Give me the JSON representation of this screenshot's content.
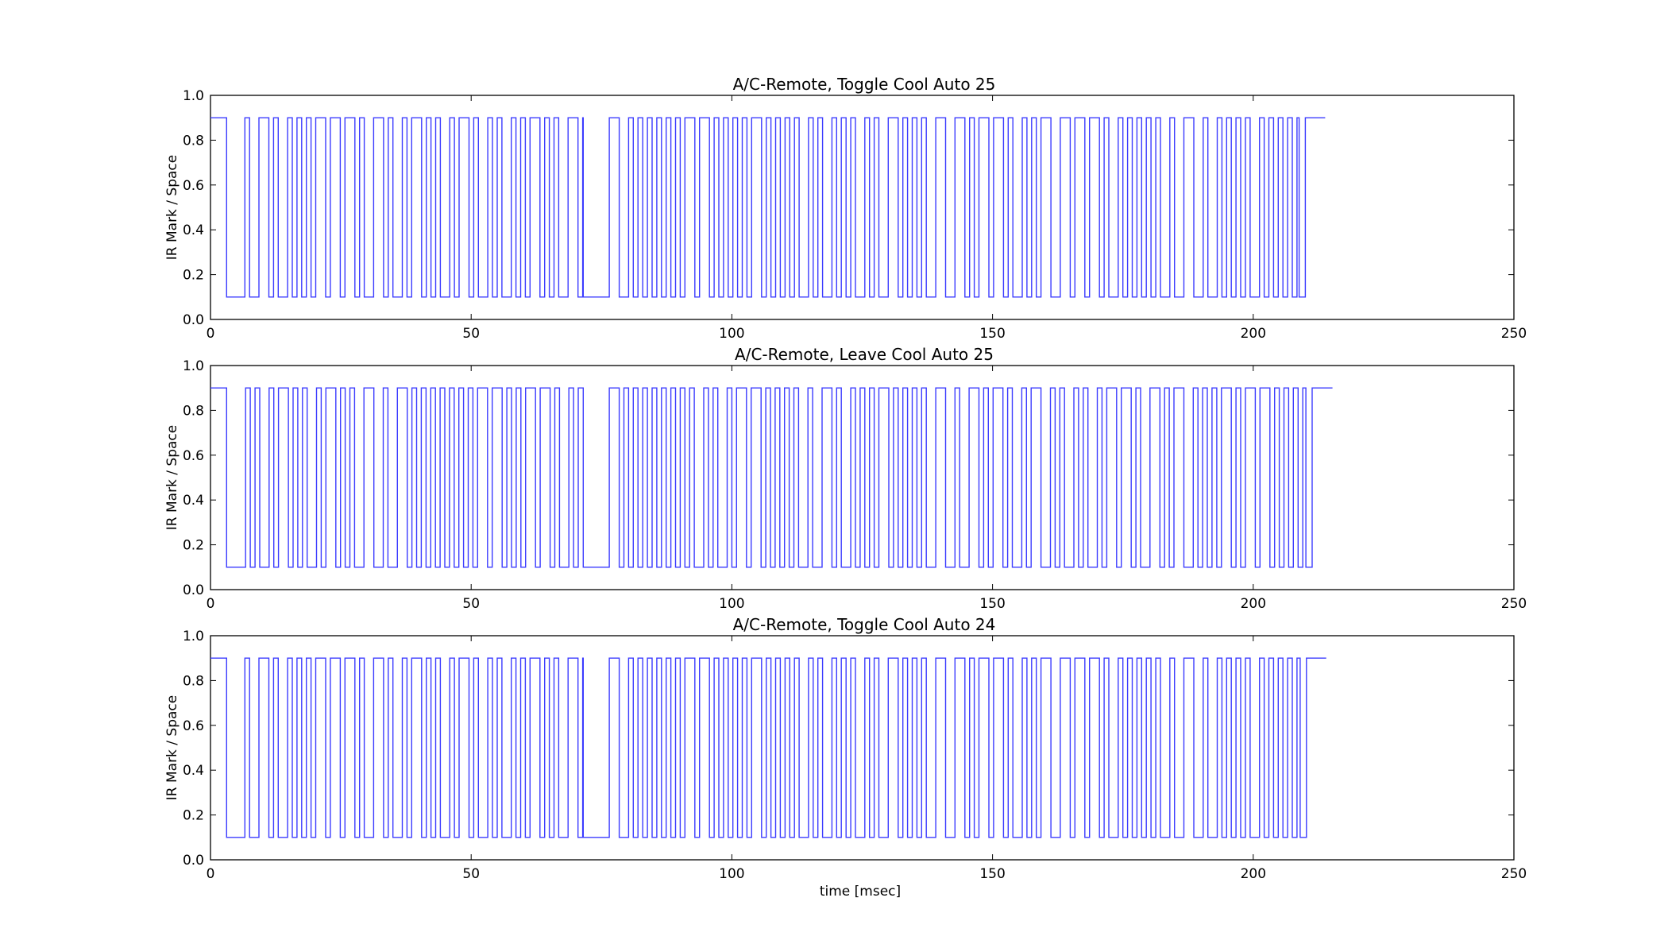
{
  "figure": {
    "shared_xlabel": "time [msec]"
  },
  "colors": {
    "line": "#3b3bff",
    "axes": "#000000",
    "background": "#ffffff"
  },
  "chart_data": [
    {
      "type": "line",
      "title": "A/C-Remote, Toggle Cool Auto 25",
      "xlabel": "",
      "ylabel": "IR Mark / Space",
      "xlim": [
        0,
        250
      ],
      "ylim": [
        0.0,
        1.0
      ],
      "x_ticks": [
        0,
        50,
        100,
        150,
        200,
        250
      ],
      "y_ticks": [
        0.0,
        0.2,
        0.4,
        0.6,
        0.8,
        1.0
      ],
      "x_tick_labels": [
        "0",
        "50",
        "100",
        "150",
        "200",
        "250"
      ],
      "y_tick_labels": [
        "0.0",
        "0.2",
        "0.4",
        "0.6",
        "0.8",
        "1.0"
      ],
      "grid": false,
      "levels": {
        "mark": 0.9,
        "space": 0.1
      },
      "series": [
        {
          "steps": [
            [
              0,
              0.9
            ],
            [
              3.1,
              0.1
            ],
            [
              6.9,
              0.9
            ],
            [
              8.9,
              0.1
            ],
            [
              9.5,
              0.9
            ],
            [
              10.6,
              0.1
            ],
            [
              11.6,
              0.9
            ],
            [
              12.3,
              0.1
            ],
            [
              13.5,
              0.9
            ],
            [
              14.3,
              0.1
            ],
            [
              15.4,
              0.9
            ],
            [
              16.4,
              0.1
            ],
            [
              17.3,
              0.9
            ],
            [
              18.2,
              0.1
            ],
            [
              19.1,
              0.9
            ],
            [
              20.3,
              0.1
            ],
            [
              21.0,
              0.9
            ],
            [
              22.0,
              0.1
            ],
            [
              22.8,
              0.9
            ],
            [
              23.7,
              0.1
            ],
            [
              24.5,
              0.9
            ],
            [
              25.4,
              0.1
            ],
            [
              26.3,
              0.9
            ],
            [
              27.2,
              0.1
            ],
            [
              28.6,
              0.9
            ],
            [
              29.8,
              0.1
            ],
            [
              31.9,
              0.9
            ],
            [
              32.9,
              0.1
            ],
            [
              33.8,
              0.9
            ],
            [
              34.7,
              0.1
            ],
            [
              35.6,
              0.9
            ],
            [
              36.5,
              0.1
            ],
            [
              37.4,
              0.9
            ],
            [
              38.3,
              0.1
            ],
            [
              39.2,
              0.9
            ],
            [
              40.2,
              0.1
            ],
            [
              41.0,
              0.9
            ],
            [
              41.9,
              0.1
            ],
            [
              42.8,
              0.9
            ],
            [
              43.7,
              0.1
            ],
            [
              44.6,
              0.9
            ],
            [
              45.5,
              0.1
            ],
            [
              46.4,
              0.9
            ],
            [
              47.3,
              0.1
            ],
            [
              48.1,
              0.9
            ],
            [
              49.0,
              0.1
            ],
            [
              49.9,
              0.9
            ],
            [
              50.8,
              0.1
            ],
            [
              51.7,
              0.9
            ],
            [
              52.6,
              0.1
            ],
            [
              53.5,
              0.9
            ],
            [
              54.4,
              0.1
            ],
            [
              55.3,
              0.9
            ],
            [
              56.2,
              0.1
            ],
            [
              57.1,
              0.9
            ],
            [
              58.0,
              0.1
            ],
            [
              58.8,
              0.9
            ],
            [
              59.7,
              0.1
            ],
            [
              60.6,
              0.9
            ],
            [
              61.5,
              0.1
            ],
            [
              62.4,
              0.9
            ],
            [
              63.3,
              0.1
            ],
            [
              64.1,
              0.9
            ],
            [
              65.9,
              0.1
            ],
            [
              66.8,
              0.9
            ],
            [
              67.7,
              0.1
            ],
            [
              68.5,
              0.9
            ],
            [
              69.5,
              0.1
            ],
            [
              70.2,
              0.9
            ],
            [
              73.0,
              0.1
            ],
            [
              76.8,
              0.9
            ],
            [
              78.8,
              0.1
            ],
            [
              79.4,
              0.9
            ],
            [
              80.2,
              0.1
            ],
            [
              81.3,
              0.9
            ],
            [
              82.1,
              0.1
            ],
            [
              83.3,
              0.9
            ],
            [
              84.0,
              0.1
            ],
            [
              85.1,
              0.9
            ],
            [
              86.0,
              0.1
            ],
            [
              86.8,
              0.9
            ],
            [
              88.9,
              0.1
            ],
            [
              89.7,
              0.9
            ],
            [
              90.5,
              0.1
            ],
            [
              91.3,
              0.9
            ],
            [
              92.3,
              0.1
            ],
            [
              93.1,
              0.9
            ],
            [
              94.0,
              0.1
            ],
            [
              94.9,
              0.9
            ],
            [
              95.9,
              0.1
            ],
            [
              97.8,
              0.9
            ],
            [
              99.4,
              0.1
            ],
            [
              101.3,
              0.9
            ],
            [
              102.2,
              0.1
            ],
            [
              103.1,
              0.9
            ],
            [
              104.0,
              0.1
            ],
            [
              104.9,
              0.9
            ],
            [
              105.8,
              0.1
            ],
            [
              106.6,
              0.9
            ],
            [
              107.5,
              0.1
            ],
            [
              108.4,
              0.9
            ],
            [
              109.3,
              0.1
            ],
            [
              110.2,
              0.9
            ],
            [
              111.1,
              0.1
            ],
            [
              111.9,
              0.9
            ],
            [
              112.8,
              0.1
            ],
            [
              113.7,
              0.9
            ],
            [
              114.6,
              0.1
            ],
            [
              115.5,
              0.9
            ],
            [
              116.4,
              0.1
            ],
            [
              117.2,
              0.9
            ],
            [
              118.1,
              0.1
            ],
            [
              119.0,
              0.9
            ],
            [
              119.9,
              0.1
            ],
            [
              120.8,
              0.9
            ],
            [
              121.7,
              0.1
            ],
            [
              122.5,
              0.9
            ],
            [
              123.4,
              0.1
            ],
            [
              124.3,
              0.9
            ],
            [
              125.2,
              0.1
            ],
            [
              126.1,
              0.9
            ],
            [
              127.0,
              0.1
            ],
            [
              127.8,
              0.9
            ],
            [
              128.7,
              0.1
            ],
            [
              129.6,
              0.9
            ],
            [
              130.5,
              0.1
            ],
            [
              131.4,
              0.9
            ],
            [
              132.3,
              0.1
            ],
            [
              133.1,
              0.9
            ],
            [
              134.0,
              0.1
            ],
            [
              134.9,
              0.9
            ],
            [
              135.8,
              0.1
            ],
            [
              136.8,
              0.9
            ],
            [
              137.6,
              0.1
            ],
            [
              138.6,
              0.9
            ],
            [
              140.5,
              0.1
            ],
            [
              141.4,
              0.9
            ],
            [
              142.0,
              0.1
            ],
            [
              142.2,
              0.9
            ],
            [
              142.0,
              0.9
            ],
            [
              144.0,
              0.1
            ]
          ]
        }
      ]
    },
    {
      "type": "line",
      "title": "A/C-Remote, Leave Cool Auto 25",
      "xlabel": "",
      "ylabel": "IR Mark / Space",
      "xlim": [
        0,
        250
      ],
      "ylim": [
        0.0,
        1.0
      ],
      "x_ticks": [
        0,
        50,
        100,
        150,
        200,
        250
      ],
      "y_ticks": [
        0.0,
        0.2,
        0.4,
        0.6,
        0.8,
        1.0
      ],
      "x_tick_labels": [
        "0",
        "50",
        "100",
        "150",
        "200",
        "250"
      ],
      "y_tick_labels": [
        "0.0",
        "0.2",
        "0.4",
        "0.6",
        "0.8",
        "1.0"
      ],
      "grid": false,
      "levels": {
        "mark": 0.9,
        "space": 0.1
      },
      "series": [
        {
          "steps": []
        }
      ]
    },
    {
      "type": "line",
      "title": "A/C-Remote, Toggle Cool Auto 24",
      "xlabel": "time [msec]",
      "ylabel": "IR Mark / Space",
      "xlim": [
        0,
        250
      ],
      "ylim": [
        0.0,
        1.0
      ],
      "x_ticks": [
        0,
        50,
        100,
        150,
        200,
        250
      ],
      "y_ticks": [
        0.0,
        0.2,
        0.4,
        0.6,
        0.8,
        1.0
      ],
      "x_tick_labels": [
        "0",
        "50",
        "100",
        "150",
        "200",
        "250"
      ],
      "y_tick_labels": [
        "0.0",
        "0.2",
        "0.4",
        "0.6",
        "0.8",
        "1.0"
      ],
      "grid": false,
      "levels": {
        "mark": 0.9,
        "space": 0.1
      },
      "series": [
        {
          "steps": []
        }
      ]
    }
  ]
}
